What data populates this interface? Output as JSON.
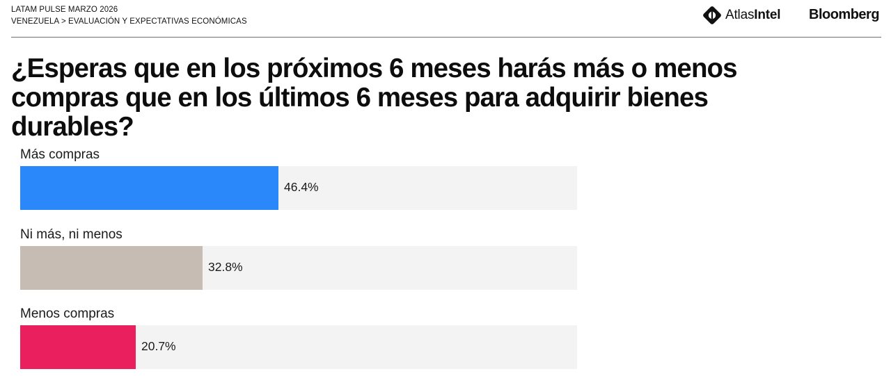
{
  "header": {
    "survey": "LATAM PULSE MARZO 2026",
    "breadcrumb": "VENEZUELA > EVALUACIÓN Y EXPECTATIVAS ECONÓMICAS",
    "logo_atlas_light": "Atlas",
    "logo_atlas_bold": "Intel",
    "logo_bloomberg": "Bloomberg"
  },
  "title": "¿Esperas que en los próximos 6 meses harás más o menos compras que en los últimos 6 meses para adquirir bienes durables?",
  "icons": {
    "atlas": "atlasintel-logo-icon"
  },
  "chart_data": {
    "type": "bar",
    "orientation": "horizontal",
    "categories": [
      "Más compras",
      "Ni más, ni menos",
      "Menos compras"
    ],
    "values": [
      46.4,
      32.8,
      20.7
    ],
    "value_labels": [
      "46.4%",
      "32.8%",
      "20.7%"
    ],
    "colors": [
      "#2a88fb",
      "#c7bcb3",
      "#ea1f5e"
    ],
    "track_color": "#f3f3f3",
    "xlim": [
      0,
      100
    ],
    "grid": false,
    "legend": "none"
  }
}
